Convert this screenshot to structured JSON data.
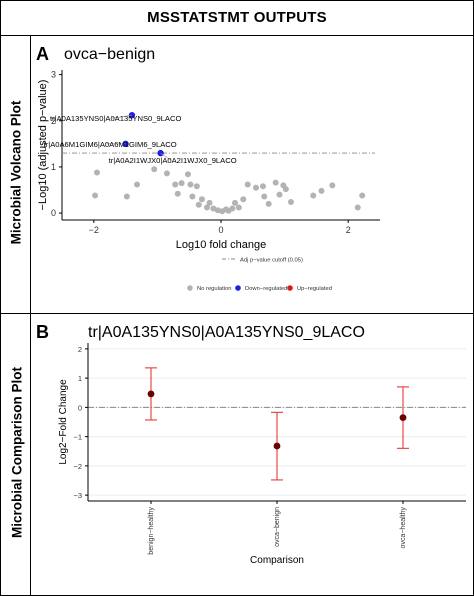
{
  "header": {
    "title": "MSSTATSTMT OUTPUTS"
  },
  "side_labels": {
    "top": "Microbial Volcano Plot",
    "bottom": "Microbial Comparison Plot"
  },
  "panels": {
    "a": {
      "letter": "A",
      "title": "ovca−benign"
    },
    "b": {
      "letter": "B",
      "title": "tr|A0A135YNS0|A0A135YNS0_9LACO"
    }
  },
  "chart_data": [
    {
      "type": "scatter",
      "title": "ovca−benign",
      "xlabel": "Log10 fold change",
      "ylabel": "−Log10 (adjusted p−value)",
      "xlim": [
        -2.5,
        2.5
      ],
      "ylim": [
        -0.15,
        3.1
      ],
      "xticks": [
        "-2",
        "0",
        "2"
      ],
      "yticks": [
        "0",
        "1",
        "2",
        "3"
      ],
      "cutoff_y": 1.3,
      "cutoff_label": "Adj p−value cutoff (0.05)",
      "legend": [
        "No regulation",
        "Down−regulated",
        "Up−regulated"
      ],
      "legend_colors": [
        "#b3b3b3",
        "#1f1fe6",
        "#e01919"
      ],
      "legend_placement": "bottom",
      "background": "plain",
      "points_no_regulation": [
        [
          -1.95,
          0.88
        ],
        [
          -1.98,
          0.38
        ],
        [
          -1.05,
          0.95
        ],
        [
          -0.85,
          0.86
        ],
        [
          -0.52,
          0.84
        ],
        [
          -0.72,
          0.62
        ],
        [
          -0.62,
          0.65
        ],
        [
          -0.48,
          0.62
        ],
        [
          -0.68,
          0.42
        ],
        [
          -0.38,
          0.58
        ],
        [
          -0.45,
          0.36
        ],
        [
          -0.3,
          0.3
        ],
        [
          -0.35,
          0.18
        ],
        [
          -0.22,
          0.12
        ],
        [
          -0.18,
          0.22
        ],
        [
          -0.12,
          0.1
        ],
        [
          -0.05,
          0.06
        ],
        [
          0.02,
          0.04
        ],
        [
          0.08,
          0.08
        ],
        [
          0.12,
          0.05
        ],
        [
          0.18,
          0.1
        ],
        [
          0.22,
          0.22
        ],
        [
          0.28,
          0.12
        ],
        [
          0.35,
          0.3
        ],
        [
          0.42,
          0.62
        ],
        [
          0.55,
          0.55
        ],
        [
          0.66,
          0.58
        ],
        [
          0.68,
          0.36
        ],
        [
          0.75,
          0.2
        ],
        [
          0.86,
          0.66
        ],
        [
          0.92,
          0.4
        ],
        [
          1.02,
          0.52
        ],
        [
          0.98,
          0.6
        ],
        [
          1.45,
          0.38
        ],
        [
          1.58,
          0.48
        ],
        [
          1.75,
          0.6
        ],
        [
          2.22,
          0.38
        ],
        [
          2.15,
          0.12
        ],
        [
          -1.48,
          0.36
        ],
        [
          -1.32,
          0.62
        ],
        [
          1.1,
          0.24
        ]
      ],
      "points_down_regulated": [
        [
          -1.4,
          2.12
        ],
        [
          -1.5,
          1.5
        ],
        [
          -0.95,
          1.3
        ]
      ],
      "points_up_regulated": [],
      "annotations": [
        {
          "x": -1.4,
          "y": 2.12,
          "text": "tr|A0A135YNS0|A0A135YNS0_9LACO"
        },
        {
          "x": -1.5,
          "y": 1.5,
          "text": "tr|A0A6M1GIM6|A0A6M1GIM6_9LACO"
        },
        {
          "x": -0.95,
          "y": 1.3,
          "text": "tr|A0A2I1WJX0|A0A2I1WJX0_9LACO"
        }
      ]
    },
    {
      "type": "errorbar",
      "title": "tr|A0A135YNS0|A0A135YNS0_9LACO",
      "xlabel": "Comparison",
      "ylabel": "Log2−Fold Change",
      "categories": [
        "benign−healthy",
        "ovca−benign",
        "ovca−healthy"
      ],
      "values": [
        0.46,
        -1.32,
        -0.35
      ],
      "lower": [
        -0.43,
        -2.48,
        -1.4
      ],
      "upper": [
        1.35,
        -0.17,
        0.7
      ],
      "ylim": [
        -3.2,
        2.2
      ],
      "yticks": [
        "2",
        "1",
        "0",
        "-1",
        "-2",
        "-3"
      ],
      "reference_line": 0,
      "grid": true,
      "point_color": "#6b0000",
      "errorbar_color": "#e83a3a"
    }
  ]
}
